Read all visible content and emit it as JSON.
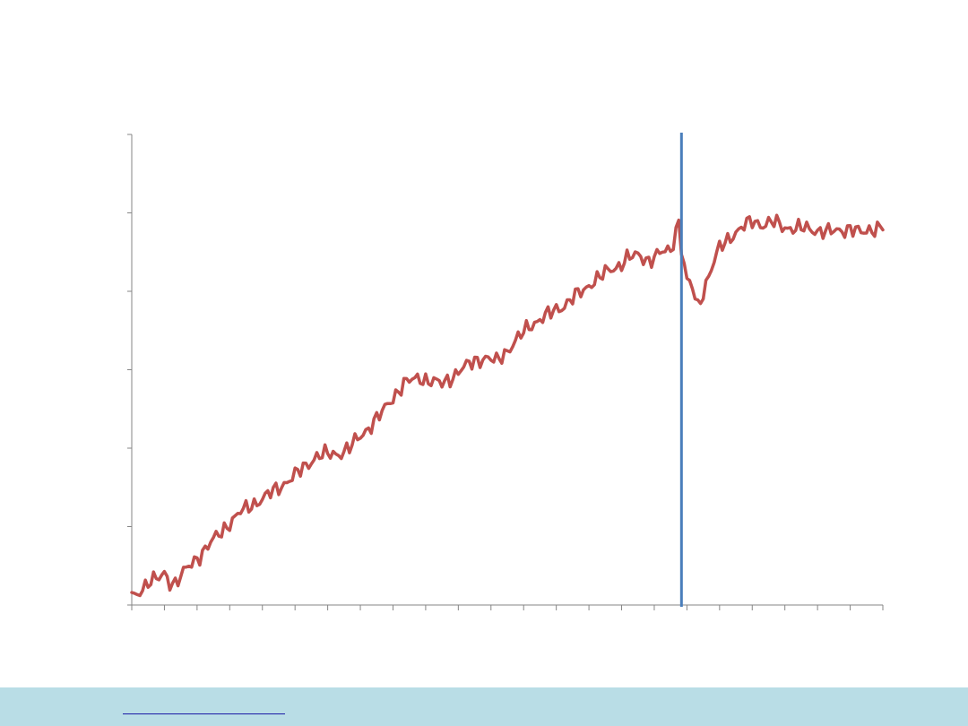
{
  "chart_data": {
    "type": "line",
    "title": "",
    "xlabel": "",
    "ylabel": "",
    "x_index_range": [
      0,
      276
    ],
    "ylim": [
      0,
      6
    ],
    "yticks": [
      0,
      1,
      2,
      3,
      4,
      5,
      6
    ],
    "x_tick_count": 24,
    "grid": false,
    "legend": "none",
    "series": [
      {
        "color": "#c0504d",
        "anchors": [
          [
            0,
            0.16
          ],
          [
            2,
            0.14
          ],
          [
            6,
            0.3
          ],
          [
            10,
            0.33
          ],
          [
            12,
            0.4
          ],
          [
            14,
            0.3
          ],
          [
            16,
            0.28
          ],
          [
            20,
            0.45
          ],
          [
            24,
            0.6
          ],
          [
            28,
            0.75
          ],
          [
            32,
            0.9
          ],
          [
            36,
            1.05
          ],
          [
            40,
            1.18
          ],
          [
            44,
            1.28
          ],
          [
            48,
            1.35
          ],
          [
            52,
            1.45
          ],
          [
            56,
            1.55
          ],
          [
            60,
            1.65
          ],
          [
            64,
            1.78
          ],
          [
            68,
            1.9
          ],
          [
            72,
            1.92
          ],
          [
            76,
            1.93
          ],
          [
            80,
            2.0
          ],
          [
            84,
            2.15
          ],
          [
            88,
            2.3
          ],
          [
            92,
            2.45
          ],
          [
            96,
            2.65
          ],
          [
            100,
            2.82
          ],
          [
            104,
            2.88
          ],
          [
            106,
            2.9
          ],
          [
            110,
            2.85
          ],
          [
            114,
            2.82
          ],
          [
            118,
            2.92
          ],
          [
            122,
            3.02
          ],
          [
            126,
            3.12
          ],
          [
            130,
            3.15
          ],
          [
            134,
            3.1
          ],
          [
            138,
            3.25
          ],
          [
            142,
            3.4
          ],
          [
            146,
            3.55
          ],
          [
            150,
            3.65
          ],
          [
            154,
            3.72
          ],
          [
            158,
            3.8
          ],
          [
            162,
            3.92
          ],
          [
            166,
            4.0
          ],
          [
            170,
            4.15
          ],
          [
            174,
            4.23
          ],
          [
            178,
            4.3
          ],
          [
            182,
            4.43
          ],
          [
            186,
            4.45
          ],
          [
            190,
            4.4
          ],
          [
            194,
            4.48
          ],
          [
            198,
            4.52
          ],
          [
            201,
            4.9
          ],
          [
            202,
            4.55
          ],
          [
            204,
            4.12
          ],
          [
            206,
            4.05
          ],
          [
            208,
            3.8
          ],
          [
            210,
            4.0
          ],
          [
            212,
            4.2
          ],
          [
            216,
            4.55
          ],
          [
            220,
            4.7
          ],
          [
            224,
            4.8
          ],
          [
            228,
            4.9
          ],
          [
            232,
            4.85
          ],
          [
            236,
            4.88
          ],
          [
            240,
            4.82
          ],
          [
            244,
            4.8
          ],
          [
            248,
            4.8
          ],
          [
            252,
            4.78
          ],
          [
            256,
            4.75
          ],
          [
            260,
            4.78
          ],
          [
            264,
            4.8
          ],
          [
            268,
            4.74
          ],
          [
            272,
            4.8
          ],
          [
            276,
            4.82
          ]
        ]
      }
    ],
    "vline": {
      "x_index": 202,
      "color": "#4a7ebb"
    }
  },
  "footer": {
    "link_text": ""
  }
}
